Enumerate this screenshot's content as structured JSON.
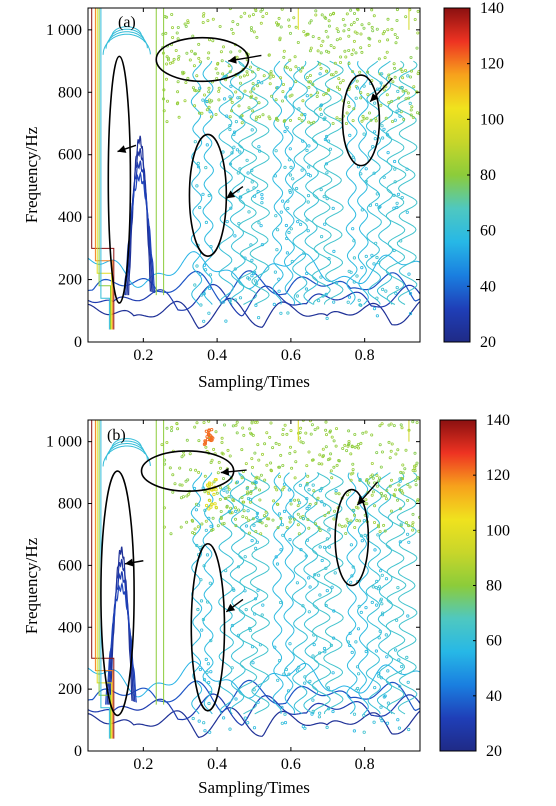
{
  "figure": {
    "colormap_stops": [
      "#1f2a86",
      "#1f3fb8",
      "#1a7fe0",
      "#27b8e6",
      "#4fc8c0",
      "#8ccc3a",
      "#c8d62a",
      "#f0e21e",
      "#f7a21c",
      "#ee3322",
      "#8b1010"
    ]
  },
  "chart_data": [
    {
      "type": "heatmap",
      "panel_label": "(a)",
      "xlabel": "Sampling/Times",
      "ylabel": "Frequency/Hz",
      "xlim": [
        0.05,
        0.95
      ],
      "ylim": [
        0,
        1070
      ],
      "x_ticks": [
        0.2,
        0.4,
        0.6,
        0.8
      ],
      "x_tick_labels": [
        "0.2",
        "0.4",
        "0.6",
        "0.8"
      ],
      "y_ticks": [
        0,
        200,
        400,
        600,
        800,
        1000
      ],
      "y_tick_labels": [
        "0",
        "200",
        "400",
        "600",
        "800",
        "1 000"
      ],
      "colorbar": {
        "min": 20,
        "max": 140,
        "ticks": [
          20,
          40,
          60,
          80,
          100,
          120,
          140
        ],
        "tick_labels": [
          "20",
          "40",
          "60",
          "80",
          "100",
          "120",
          "140"
        ]
      },
      "annotations": [
        {
          "shape": "ellipse",
          "cx": 0.135,
          "cy": 520,
          "rx": 0.03,
          "ry": 395,
          "arrow_tip": [
            0.13,
            610
          ],
          "arrow_from": [
            0.18,
            630
          ]
        },
        {
          "shape": "ellipse",
          "cx": 0.36,
          "cy": 905,
          "rx": 0.125,
          "ry": 70,
          "arrow_tip": [
            0.43,
            900
          ],
          "arrow_from": [
            0.52,
            918
          ]
        },
        {
          "shape": "ellipse",
          "cx": 0.375,
          "cy": 470,
          "rx": 0.05,
          "ry": 195,
          "arrow_tip": [
            0.425,
            460
          ],
          "arrow_from": [
            0.47,
            498
          ]
        },
        {
          "shape": "ellipse",
          "cx": 0.79,
          "cy": 710,
          "rx": 0.05,
          "ry": 145,
          "arrow_tip": [
            0.815,
            770
          ],
          "arrow_from": [
            0.875,
            845
          ]
        }
      ]
    },
    {
      "type": "heatmap",
      "panel_label": "(b)",
      "xlabel": "Sampling/Times",
      "ylabel": "Frequency/Hz",
      "xlim": [
        0.05,
        0.95
      ],
      "ylim": [
        0,
        1070
      ],
      "x_ticks": [
        0.2,
        0.4,
        0.6,
        0.8
      ],
      "x_tick_labels": [
        "0.2",
        "0.4",
        "0.6",
        "0.8"
      ],
      "y_ticks": [
        0,
        200,
        400,
        600,
        800,
        1000
      ],
      "y_tick_labels": [
        "0",
        "200",
        "400",
        "600",
        "800",
        "1 000"
      ],
      "colorbar": {
        "min": 20,
        "max": 140,
        "ticks": [
          20,
          40,
          60,
          80,
          100,
          120,
          140
        ],
        "tick_labels": [
          "20",
          "40",
          "60",
          "80",
          "100",
          "120",
          "140"
        ]
      },
      "annotations": [
        {
          "shape": "ellipse",
          "cx": 0.13,
          "cy": 510,
          "rx": 0.045,
          "ry": 395,
          "arrow_tip": [
            0.15,
            605
          ],
          "arrow_from": [
            0.2,
            615
          ]
        },
        {
          "shape": "ellipse",
          "cx": 0.32,
          "cy": 905,
          "rx": 0.125,
          "ry": 65,
          "arrow_tip": [
            0.41,
            900
          ],
          "arrow_from": [
            0.48,
            908
          ]
        },
        {
          "shape": "ellipse",
          "cx": 0.375,
          "cy": 400,
          "rx": 0.045,
          "ry": 270,
          "arrow_tip": [
            0.425,
            450
          ],
          "arrow_from": [
            0.47,
            490
          ]
        },
        {
          "shape": "ellipse",
          "cx": 0.765,
          "cy": 690,
          "rx": 0.045,
          "ry": 155,
          "arrow_tip": [
            0.78,
            795
          ],
          "arrow_from": [
            0.835,
            870
          ]
        }
      ]
    }
  ]
}
